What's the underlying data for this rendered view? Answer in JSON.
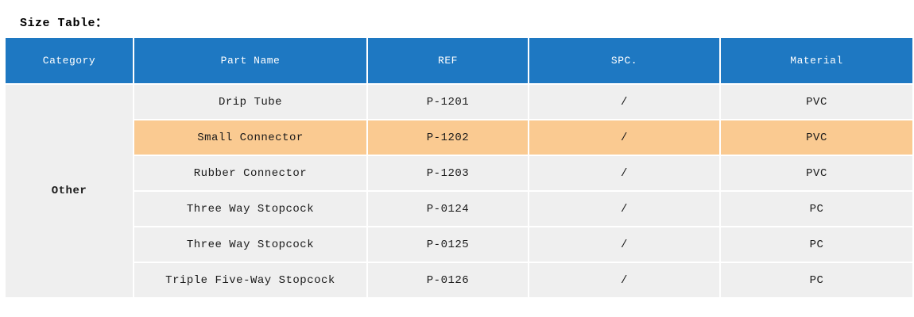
{
  "page": {
    "title": "Size Table："
  },
  "colors": {
    "header_bg": "#1E78C2",
    "row_bg": "#EFEFEF",
    "highlight_bg": "#FACA91",
    "header_text": "#FFFFFF",
    "body_text": "#1A1A1A",
    "grid_line": "#FFFFFF"
  },
  "table": {
    "columns": [
      "Category",
      "Part Name",
      "REF",
      "SPC.",
      "Material"
    ],
    "category": "Other",
    "highlighted_row_index": 1,
    "rows": [
      {
        "part_name": "Drip Tube",
        "ref": "P-1201",
        "spc": "/",
        "material": "PVC"
      },
      {
        "part_name": "Small Connector",
        "ref": "P-1202",
        "spc": "/",
        "material": "PVC"
      },
      {
        "part_name": "Rubber Connector",
        "ref": "P-1203",
        "spc": "/",
        "material": "PVC"
      },
      {
        "part_name": "Three Way Stopcock",
        "ref": "P-0124",
        "spc": "/",
        "material": "PC"
      },
      {
        "part_name": "Three Way Stopcock",
        "ref": "P-0125",
        "spc": "/",
        "material": "PC"
      },
      {
        "part_name": "Triple Five-Way Stopcock",
        "ref": "P-0126",
        "spc": "/",
        "material": "PC"
      }
    ]
  }
}
